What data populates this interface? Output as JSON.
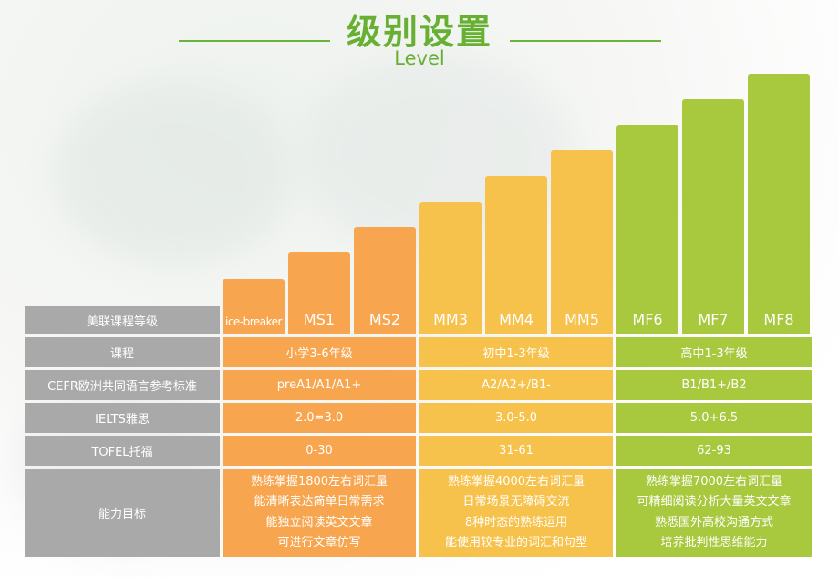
{
  "header": {
    "title": "级别设置",
    "subtitle": "Level"
  },
  "levels": [
    "ice-breaker",
    "MS1",
    "MS2",
    "MM3",
    "MM4",
    "MM5",
    "MF6",
    "MF7",
    "MF8"
  ],
  "table": {
    "row_labels": [
      "美联课程等级",
      "课程",
      "CEFR欧洲共同语言参考标准",
      "IELTS雅思",
      "TOFEL托福",
      "能力目标"
    ],
    "groups": [
      {
        "course": "小学3-6年级",
        "cefr": "preA1/A1/A1+",
        "ielts": "2.0=3.0",
        "toefl": "0-30",
        "goals": [
          "熟练掌握1800左右词汇量",
          "能清晰表达简单日常需求",
          "能独立阅读英文文章",
          "可进行文章仿写"
        ]
      },
      {
        "course": "初中1-3年级",
        "cefr": "A2/A2+/B1-",
        "ielts": "3.0-5.0",
        "toefl": "31-61",
        "goals": [
          "熟练掌握4000左右词汇量",
          "日常场景无障碍交流",
          "8种时态的熟练运用",
          "能使用较专业的词汇和句型"
        ]
      },
      {
        "course": "高中1-3年级",
        "cefr": "B1/B1+/B2",
        "ielts": "5.0+6.5",
        "toefl": "62-93",
        "goals": [
          "熟练掌握7000左右词汇量",
          "可精细阅读分析大量英文文章",
          "熟悉国外高校沟通方式",
          "培养批判性思维能力"
        ]
      }
    ]
  }
}
